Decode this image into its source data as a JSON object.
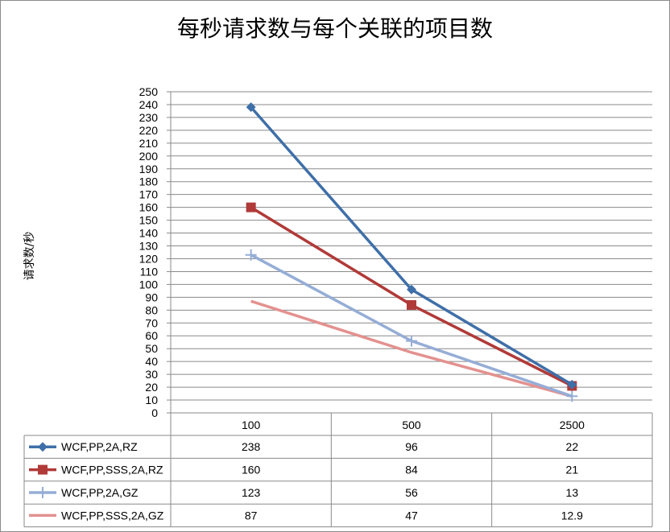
{
  "chart_data": {
    "type": "line",
    "title": "每秒请求数与每个关联的项目数",
    "xlabel": "",
    "ylabel": "请求数/秒",
    "categories": [
      "100",
      "500",
      "2500"
    ],
    "ylim": [
      0,
      250
    ],
    "ytick_step": 10,
    "grid": true,
    "legend": "data-table",
    "series": [
      {
        "name": "WCF,PP,2A,RZ",
        "values": [
          238,
          96,
          22
        ],
        "color": "#3f6fa8",
        "marker": "diamond",
        "labels": [
          "238",
          "96",
          "22"
        ]
      },
      {
        "name": "WCF,PP,SSS,2A,RZ",
        "values": [
          160,
          84,
          21
        ],
        "color": "#b03a38",
        "marker": "square",
        "labels": [
          "160",
          "84",
          "21"
        ]
      },
      {
        "name": "WCF,PP,2A,GZ",
        "values": [
          123,
          56,
          13
        ],
        "color": "#95add6",
        "marker": "plus",
        "labels": [
          "123",
          "56",
          "13"
        ]
      },
      {
        "name": "WCF,PP,SSS,2A,GZ",
        "values": [
          87,
          47,
          12.9
        ],
        "color": "#e3918f",
        "marker": "none",
        "labels": [
          "87",
          "47",
          "12.9"
        ]
      }
    ]
  }
}
